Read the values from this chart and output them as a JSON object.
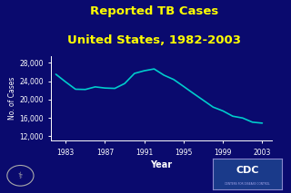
{
  "title_line1": "Reported TB Cases",
  "title_line2": "United States, 1982-2003",
  "title_color": "#FFFF00",
  "background_color": "#0A0A6E",
  "plot_bg_color": "#0A0A6E",
  "line_color": "#00CCCC",
  "axes_color": "#FFFFFF",
  "tick_label_color": "#FFFFFF",
  "xlabel": "Year",
  "ylabel": "No. of Cases",
  "years": [
    1982,
    1983,
    1984,
    1985,
    1986,
    1987,
    1988,
    1989,
    1990,
    1991,
    1992,
    1993,
    1994,
    1995,
    1996,
    1997,
    1998,
    1999,
    2000,
    2001,
    2002,
    2003
  ],
  "cases": [
    25520,
    23846,
    22255,
    22201,
    22768,
    22517,
    22436,
    23495,
    25701,
    26283,
    26673,
    25313,
    24361,
    22860,
    21337,
    19855,
    18361,
    17531,
    16377,
    15989,
    15078,
    14874
  ],
  "xticks": [
    1983,
    1987,
    1991,
    1995,
    1999,
    2003
  ],
  "yticks": [
    12000,
    16000,
    20000,
    24000,
    28000
  ],
  "ylim": [
    11000,
    29500
  ],
  "xlim": [
    1981.5,
    2004.0
  ],
  "cdc_box_color": "#1A3A8A",
  "cdc_text_color": "#FFFFFF"
}
